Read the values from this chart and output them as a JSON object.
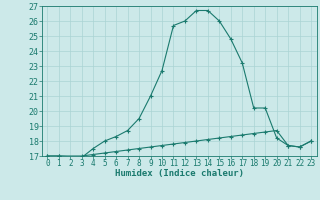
{
  "title": "",
  "xlabel": "Humidex (Indice chaleur)",
  "ylabel": "",
  "background_color": "#cce9e9",
  "line_color": "#1a7a6e",
  "grid_color": "#aad4d4",
  "xlim": [
    -0.5,
    23.5
  ],
  "ylim": [
    17,
    27
  ],
  "xticks": [
    0,
    1,
    2,
    3,
    4,
    5,
    6,
    7,
    8,
    9,
    10,
    11,
    12,
    13,
    14,
    15,
    16,
    17,
    18,
    19,
    20,
    21,
    22,
    23
  ],
  "yticks": [
    17,
    18,
    19,
    20,
    21,
    22,
    23,
    24,
    25,
    26,
    27
  ],
  "line1_x": [
    0,
    1,
    3,
    4,
    5,
    6,
    7,
    8,
    9,
    10,
    11,
    12,
    13,
    14,
    15,
    16,
    17,
    18,
    19,
    20,
    21,
    22,
    23
  ],
  "line1_y": [
    17.0,
    17.0,
    17.0,
    17.1,
    17.2,
    17.3,
    17.4,
    17.5,
    17.6,
    17.7,
    17.8,
    17.9,
    18.0,
    18.1,
    18.2,
    18.3,
    18.4,
    18.5,
    18.6,
    18.7,
    17.7,
    17.6,
    18.0
  ],
  "line2_x": [
    0,
    1,
    3,
    4,
    5,
    6,
    7,
    8,
    9,
    10,
    11,
    12,
    13,
    14,
    15,
    16,
    17,
    18,
    19,
    20,
    21,
    22,
    23
  ],
  "line2_y": [
    17.0,
    17.0,
    16.9,
    17.5,
    18.0,
    18.3,
    18.7,
    19.5,
    21.0,
    22.7,
    25.7,
    26.0,
    26.7,
    26.7,
    26.0,
    24.8,
    23.2,
    20.2,
    20.2,
    18.2,
    17.7,
    17.6,
    18.0
  ],
  "marker": "+",
  "xlabel_fontsize": 6.5,
  "tick_fontsize": 5.5
}
